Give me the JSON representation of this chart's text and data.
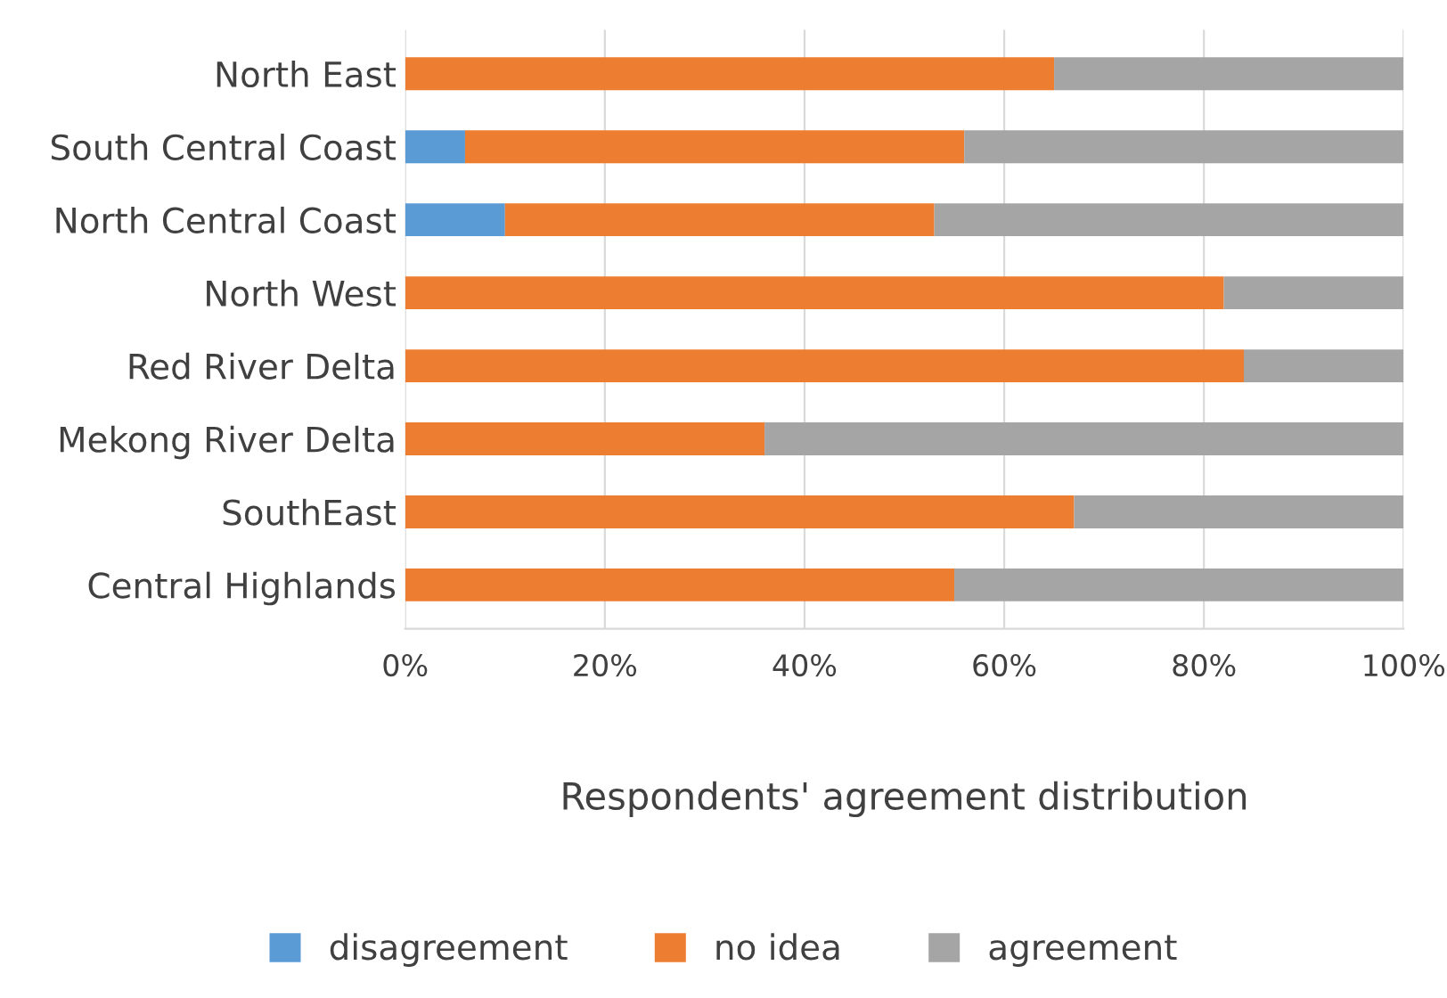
{
  "chart_data": {
    "type": "bar",
    "orientation": "horizontal",
    "stacked": true,
    "categories": [
      "North East",
      "South Central Coast",
      "North Central Coast",
      "North West",
      "Red River Delta",
      "Mekong River Delta",
      "SouthEast",
      "Central Highlands"
    ],
    "series": [
      {
        "name": "disagreement",
        "color": "#5b9bd5",
        "values": [
          0,
          6,
          10,
          0,
          0,
          0,
          0,
          0
        ]
      },
      {
        "name": "no idea",
        "color": "#ed7d31",
        "values": [
          65,
          50,
          43,
          82,
          84,
          36,
          67,
          55
        ]
      },
      {
        "name": "agreement",
        "color": "#a5a5a5",
        "values": [
          35,
          44,
          47,
          18,
          16,
          64,
          33,
          45
        ]
      }
    ],
    "xlim": [
      0,
      100
    ],
    "xticks": [
      {
        "value": 0,
        "label": "0%"
      },
      {
        "value": 20,
        "label": "20%"
      },
      {
        "value": 40,
        "label": "40%"
      },
      {
        "value": 60,
        "label": "60%"
      },
      {
        "value": 80,
        "label": "80%"
      },
      {
        "value": 100,
        "label": "100%"
      }
    ],
    "xlabel": "Respondents' agreement distribution",
    "grid": "x",
    "legend": "bottom"
  }
}
